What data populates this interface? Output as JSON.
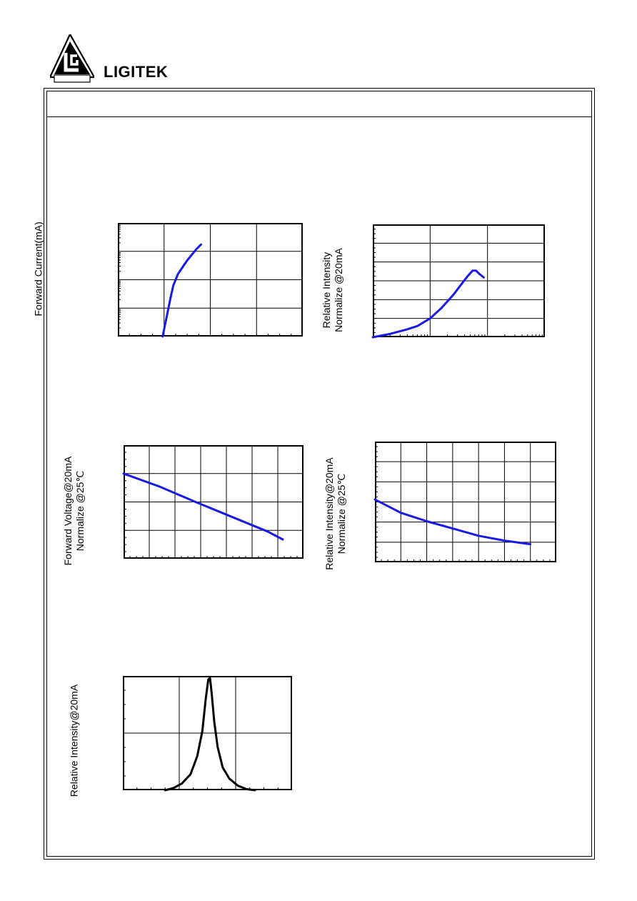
{
  "header": {
    "brand_name": "LIGITEK",
    "logo_text": "LIGITEK LED"
  },
  "colors": {
    "curve_blue": "#1a1ae6",
    "curve_black": "#000000",
    "axis": "#000000"
  },
  "chart_data": [
    {
      "type": "line",
      "title": "",
      "xlabel": "",
      "ylabel": [
        "Forward Current(mA)"
      ],
      "xlim": [
        0,
        100
      ],
      "ylim": [
        0,
        100
      ],
      "ylog": true,
      "x_grid_divisions": 4,
      "y_grid_divisions": 4,
      "grid": true,
      "series": [
        {
          "color": "#1a1ae6",
          "x": [
            24.2,
            25.5,
            27.0,
            28.5,
            30.0,
            32.5,
            35.0,
            37.5,
            40.0,
            42.5,
            45.0
          ],
          "y": [
            0,
            10,
            22,
            34,
            45,
            55,
            61,
            67,
            72,
            77,
            81
          ]
        }
      ]
    },
    {
      "type": "line",
      "title": "",
      "xlabel": "",
      "ylabel": [
        "Relative Intensity",
        "Normalize @20mA"
      ],
      "xlim": [
        0,
        100
      ],
      "ylim": [
        0,
        100
      ],
      "xlog": true,
      "x_grid_divisions": 3,
      "y_grid_divisions": 6,
      "grid": true,
      "series": [
        {
          "color": "#1a1ae6",
          "x": [
            0,
            10,
            20,
            26,
            33.3,
            40,
            47,
            52,
            55,
            58,
            60,
            62,
            64.5
          ],
          "y": [
            0,
            3,
            7,
            10,
            16.7,
            26,
            38,
            48,
            54,
            59,
            59,
            56,
            53
          ]
        }
      ]
    },
    {
      "type": "line",
      "title": "",
      "xlabel": "",
      "ylabel": [
        "Forward Voltage@20mA",
        "Normalize @25℃"
      ],
      "xlim": [
        0,
        100
      ],
      "ylim": [
        0,
        100
      ],
      "x_grid_divisions": 7,
      "y_grid_divisions": 4,
      "grid": true,
      "series": [
        {
          "color": "#1a1ae6",
          "x": [
            0,
            20,
            40,
            60,
            80,
            88.5
          ],
          "y": [
            75,
            63.5,
            50,
            37,
            24,
            17
          ]
        }
      ]
    },
    {
      "type": "line",
      "title": "",
      "xlabel": "",
      "ylabel": [
        "Relative Intensity@20mA",
        "Normalize @25℃"
      ],
      "xlim": [
        0,
        100
      ],
      "ylim": [
        0,
        100
      ],
      "x_grid_divisions": 7,
      "y_grid_divisions": 6,
      "grid": true,
      "series": [
        {
          "color": "#1a1ae6",
          "x": [
            0,
            14.3,
            28.6,
            42.9,
            57.1,
            71.4,
            85.7
          ],
          "y": [
            52,
            41,
            34,
            28,
            22,
            18,
            15
          ]
        }
      ]
    },
    {
      "type": "line",
      "title": "",
      "xlabel": "",
      "ylabel": [
        "Relative Intensity@20mA"
      ],
      "xlim": [
        0,
        100
      ],
      "ylim": [
        0,
        100
      ],
      "x_grid_divisions": 3,
      "y_grid_divisions": 2,
      "grid": true,
      "series": [
        {
          "color": "#000000",
          "x": [
            25,
            30,
            35,
            40,
            44,
            47,
            49,
            50.5,
            51.5,
            52.5,
            54,
            56,
            59,
            63,
            68,
            73,
            78
          ],
          "y": [
            0,
            2,
            6,
            14,
            30,
            52,
            80,
            97,
            98,
            85,
            60,
            38,
            20,
            10,
            4,
            1,
            0
          ]
        }
      ]
    }
  ]
}
